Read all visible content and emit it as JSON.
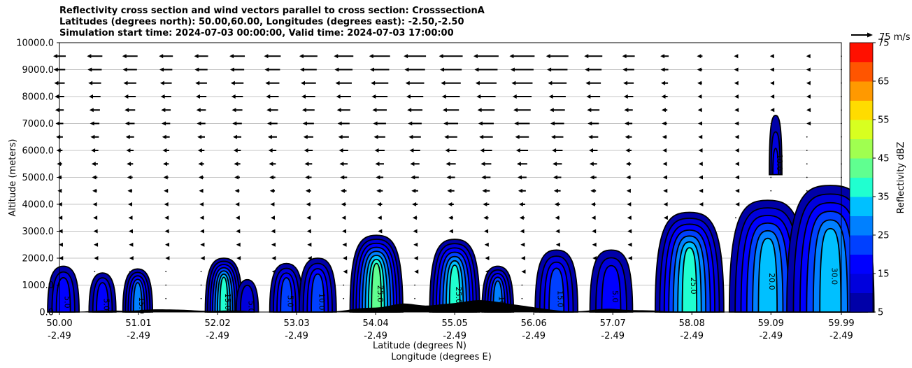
{
  "chart_data": {
    "type": "heatmap",
    "title_lines": [
      "Reflectivity cross section and wind vectors parallel to cross section: CrosssectionA",
      "Latitudes (degrees north): 50.00,60.00, Longitudes (degrees east): -2.50,-2.50",
      "Simulation start time: 2024-07-03 00:00:00, Valid time: 2024-07-03 17:00:00"
    ],
    "ylabel": "Altitude (meters)",
    "xlabel": "Latitude (degrees N)",
    "xlabel2": "Longitude (degrees E)",
    "ylim": [
      0,
      10000
    ],
    "yticks": [
      "0.0",
      "1000.0",
      "2000.0",
      "3000.0",
      "4000.0",
      "5000.0",
      "6000.0",
      "7000.0",
      "8000.0",
      "9000.0",
      "10000.0"
    ],
    "xlim": [
      50.0,
      59.99
    ],
    "xticks": [
      {
        "lat": "50.00",
        "lon": "-2.49"
      },
      {
        "lat": "51.01",
        "lon": "-2.49"
      },
      {
        "lat": "52.02",
        "lon": "-2.49"
      },
      {
        "lat": "53.03",
        "lon": "-2.49"
      },
      {
        "lat": "54.04",
        "lon": "-2.49"
      },
      {
        "lat": "55.05",
        "lon": "-2.49"
      },
      {
        "lat": "56.06",
        "lon": "-2.49"
      },
      {
        "lat": "57.07",
        "lon": "-2.49"
      },
      {
        "lat": "58.08",
        "lon": "-2.49"
      },
      {
        "lat": "59.09",
        "lon": "-2.49"
      },
      {
        "lat": "59.99",
        "lon": "-2.49"
      }
    ],
    "grid": "horizontal",
    "colorbar": {
      "label": "Reflectivity dBZ",
      "min": 5,
      "max": 75,
      "step": 5,
      "ticks": [
        "5",
        "15",
        "25",
        "35",
        "45",
        "55",
        "65",
        "75"
      ],
      "colors": [
        "#0000a8",
        "#0000dd",
        "#0000ff",
        "#0040ff",
        "#0080ff",
        "#00c0ff",
        "#20ffd0",
        "#60ff90",
        "#a0ff50",
        "#d8ff20",
        "#ffdc00",
        "#ff9900",
        "#ff5500",
        "#ff1000"
      ]
    },
    "quiver_key": "75 m/s",
    "wind_rows": [
      500,
      1000,
      1500,
      2000,
      2500,
      3000,
      3500,
      4000,
      4500,
      5000,
      5500,
      6000,
      6500,
      7000,
      7500,
      8000,
      8500,
      9000,
      9500
    ],
    "wind_cols": [
      50.0,
      50.45,
      50.9,
      51.36,
      51.81,
      52.27,
      52.72,
      53.18,
      53.63,
      54.09,
      54.54,
      55.0,
      55.45,
      55.91,
      56.36,
      56.82,
      57.27,
      57.73,
      58.18,
      58.64,
      59.09,
      59.55,
      59.99
    ],
    "wind_peak_at_9500m": [
      -0.18,
      -0.22,
      -0.22,
      -0.2,
      -0.2,
      -0.22,
      -0.24,
      -0.26,
      -0.28,
      -0.3,
      -0.32,
      -0.34,
      -0.36,
      -0.36,
      -0.32,
      -0.26,
      -0.18,
      -0.12,
      -0.08,
      -0.05,
      -0.03,
      -0.02,
      -0.01
    ],
    "echoes": [
      {
        "lat": 50.05,
        "top": 1700,
        "peak_dbz": 15,
        "label": "5.0"
      },
      {
        "lat": 50.55,
        "top": 1450,
        "peak_dbz": 15,
        "label": "5.0"
      },
      {
        "lat": 51.0,
        "top": 1600,
        "peak_dbz": 25,
        "label": "15.0"
      },
      {
        "lat": 52.1,
        "top": 2000,
        "peak_dbz": 35,
        "label": "15.0"
      },
      {
        "lat": 52.4,
        "top": 1200,
        "peak_dbz": 10,
        "label": "5.0"
      },
      {
        "lat": 52.9,
        "top": 1800,
        "peak_dbz": 20,
        "label": "5.0"
      },
      {
        "lat": 53.3,
        "top": 2000,
        "peak_dbz": 20,
        "label": "10.0"
      },
      {
        "lat": 54.05,
        "top": 2850,
        "peak_dbz": 40,
        "label": "25.0"
      },
      {
        "lat": 55.05,
        "top": 2700,
        "peak_dbz": 35,
        "label": "25.0"
      },
      {
        "lat": 55.6,
        "top": 1700,
        "peak_dbz": 25,
        "label": "10.0"
      },
      {
        "lat": 56.35,
        "top": 2300,
        "peak_dbz": 20,
        "label": "15.0"
      },
      {
        "lat": 57.05,
        "top": 2300,
        "peak_dbz": 15,
        "label": "5.0"
      },
      {
        "lat": 58.05,
        "top": 3700,
        "peak_dbz": 35,
        "label": "25.0"
      },
      {
        "lat": 59.05,
        "top": 4150,
        "peak_dbz": 30,
        "label": "20.0"
      },
      {
        "lat": 59.15,
        "top": 7300,
        "peak_dbz": 15,
        "label": "10.0"
      },
      {
        "lat": 59.85,
        "top": 4700,
        "peak_dbz": 30,
        "label": "30.0"
      }
    ]
  }
}
